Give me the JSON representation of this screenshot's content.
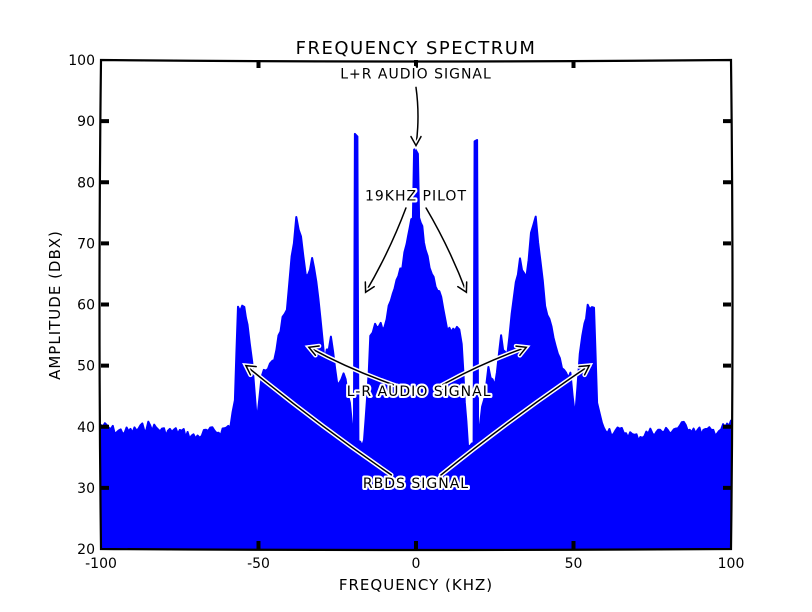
{
  "chart_data": {
    "type": "area",
    "title": "FREQUENCY SPECTRUM",
    "xlabel": "FREQUENCY (KHZ)",
    "ylabel": "AMPLITUDE (DBX)",
    "xlim": [
      -100,
      100
    ],
    "ylim": [
      20,
      100
    ],
    "xticks": [
      -100,
      -50,
      0,
      50,
      100
    ],
    "xtick_labels": [
      "-100",
      "-50",
      "0",
      "50",
      "100"
    ],
    "yticks": [
      20,
      30,
      40,
      50,
      60,
      70,
      80,
      90,
      100
    ],
    "ytick_labels": [
      "20",
      "30",
      "40",
      "50",
      "60",
      "70",
      "80",
      "90",
      "100"
    ],
    "grid": false,
    "color": "#0000ff",
    "symmetric_about_zero": true,
    "envelope_positive_half": {
      "x": [
        0,
        0.6,
        1,
        2,
        3,
        5,
        8,
        10,
        13,
        14.5,
        15.5,
        16.5,
        18.3,
        18.6,
        19.4,
        19.7,
        21,
        23,
        25,
        27,
        29,
        31,
        33,
        35,
        36.5,
        38,
        39.5,
        41,
        43,
        45,
        47,
        49,
        50.5,
        52,
        53.5,
        54.5,
        56.5,
        57.5,
        59,
        62,
        66,
        70,
        75,
        80,
        85,
        90,
        95,
        100
      ],
      "y": [
        86,
        86,
        75,
        73,
        70,
        66,
        62,
        57,
        57,
        55,
        45,
        38,
        38,
        88,
        88,
        38,
        44,
        50,
        47,
        55,
        52,
        62,
        68,
        65,
        72,
        75,
        68,
        60,
        57,
        52,
        50,
        49,
        42,
        52,
        58,
        60,
        60,
        45,
        41,
        40,
        40,
        39,
        40,
        40,
        41,
        40,
        40,
        41
      ]
    },
    "annotations": [
      {
        "text": "L+R AUDIO SIGNAL",
        "xytext": [
          0,
          97
        ],
        "targets": [
          [
            0,
            86
          ]
        ]
      },
      {
        "text": "19KHZ PILOT",
        "xytext": [
          0,
          77
        ],
        "targets": [
          [
            -16,
            62
          ],
          [
            16,
            62
          ]
        ]
      },
      {
        "text": "L-R AUDIO SIGNAL",
        "xytext": [
          1,
          45
        ],
        "targets": [
          [
            -34,
            53
          ],
          [
            35,
            53
          ]
        ]
      },
      {
        "text": "RBDS SIGNAL",
        "xytext": [
          0,
          30
        ],
        "targets": [
          [
            -54,
            50
          ],
          [
            55,
            50
          ]
        ]
      }
    ]
  }
}
